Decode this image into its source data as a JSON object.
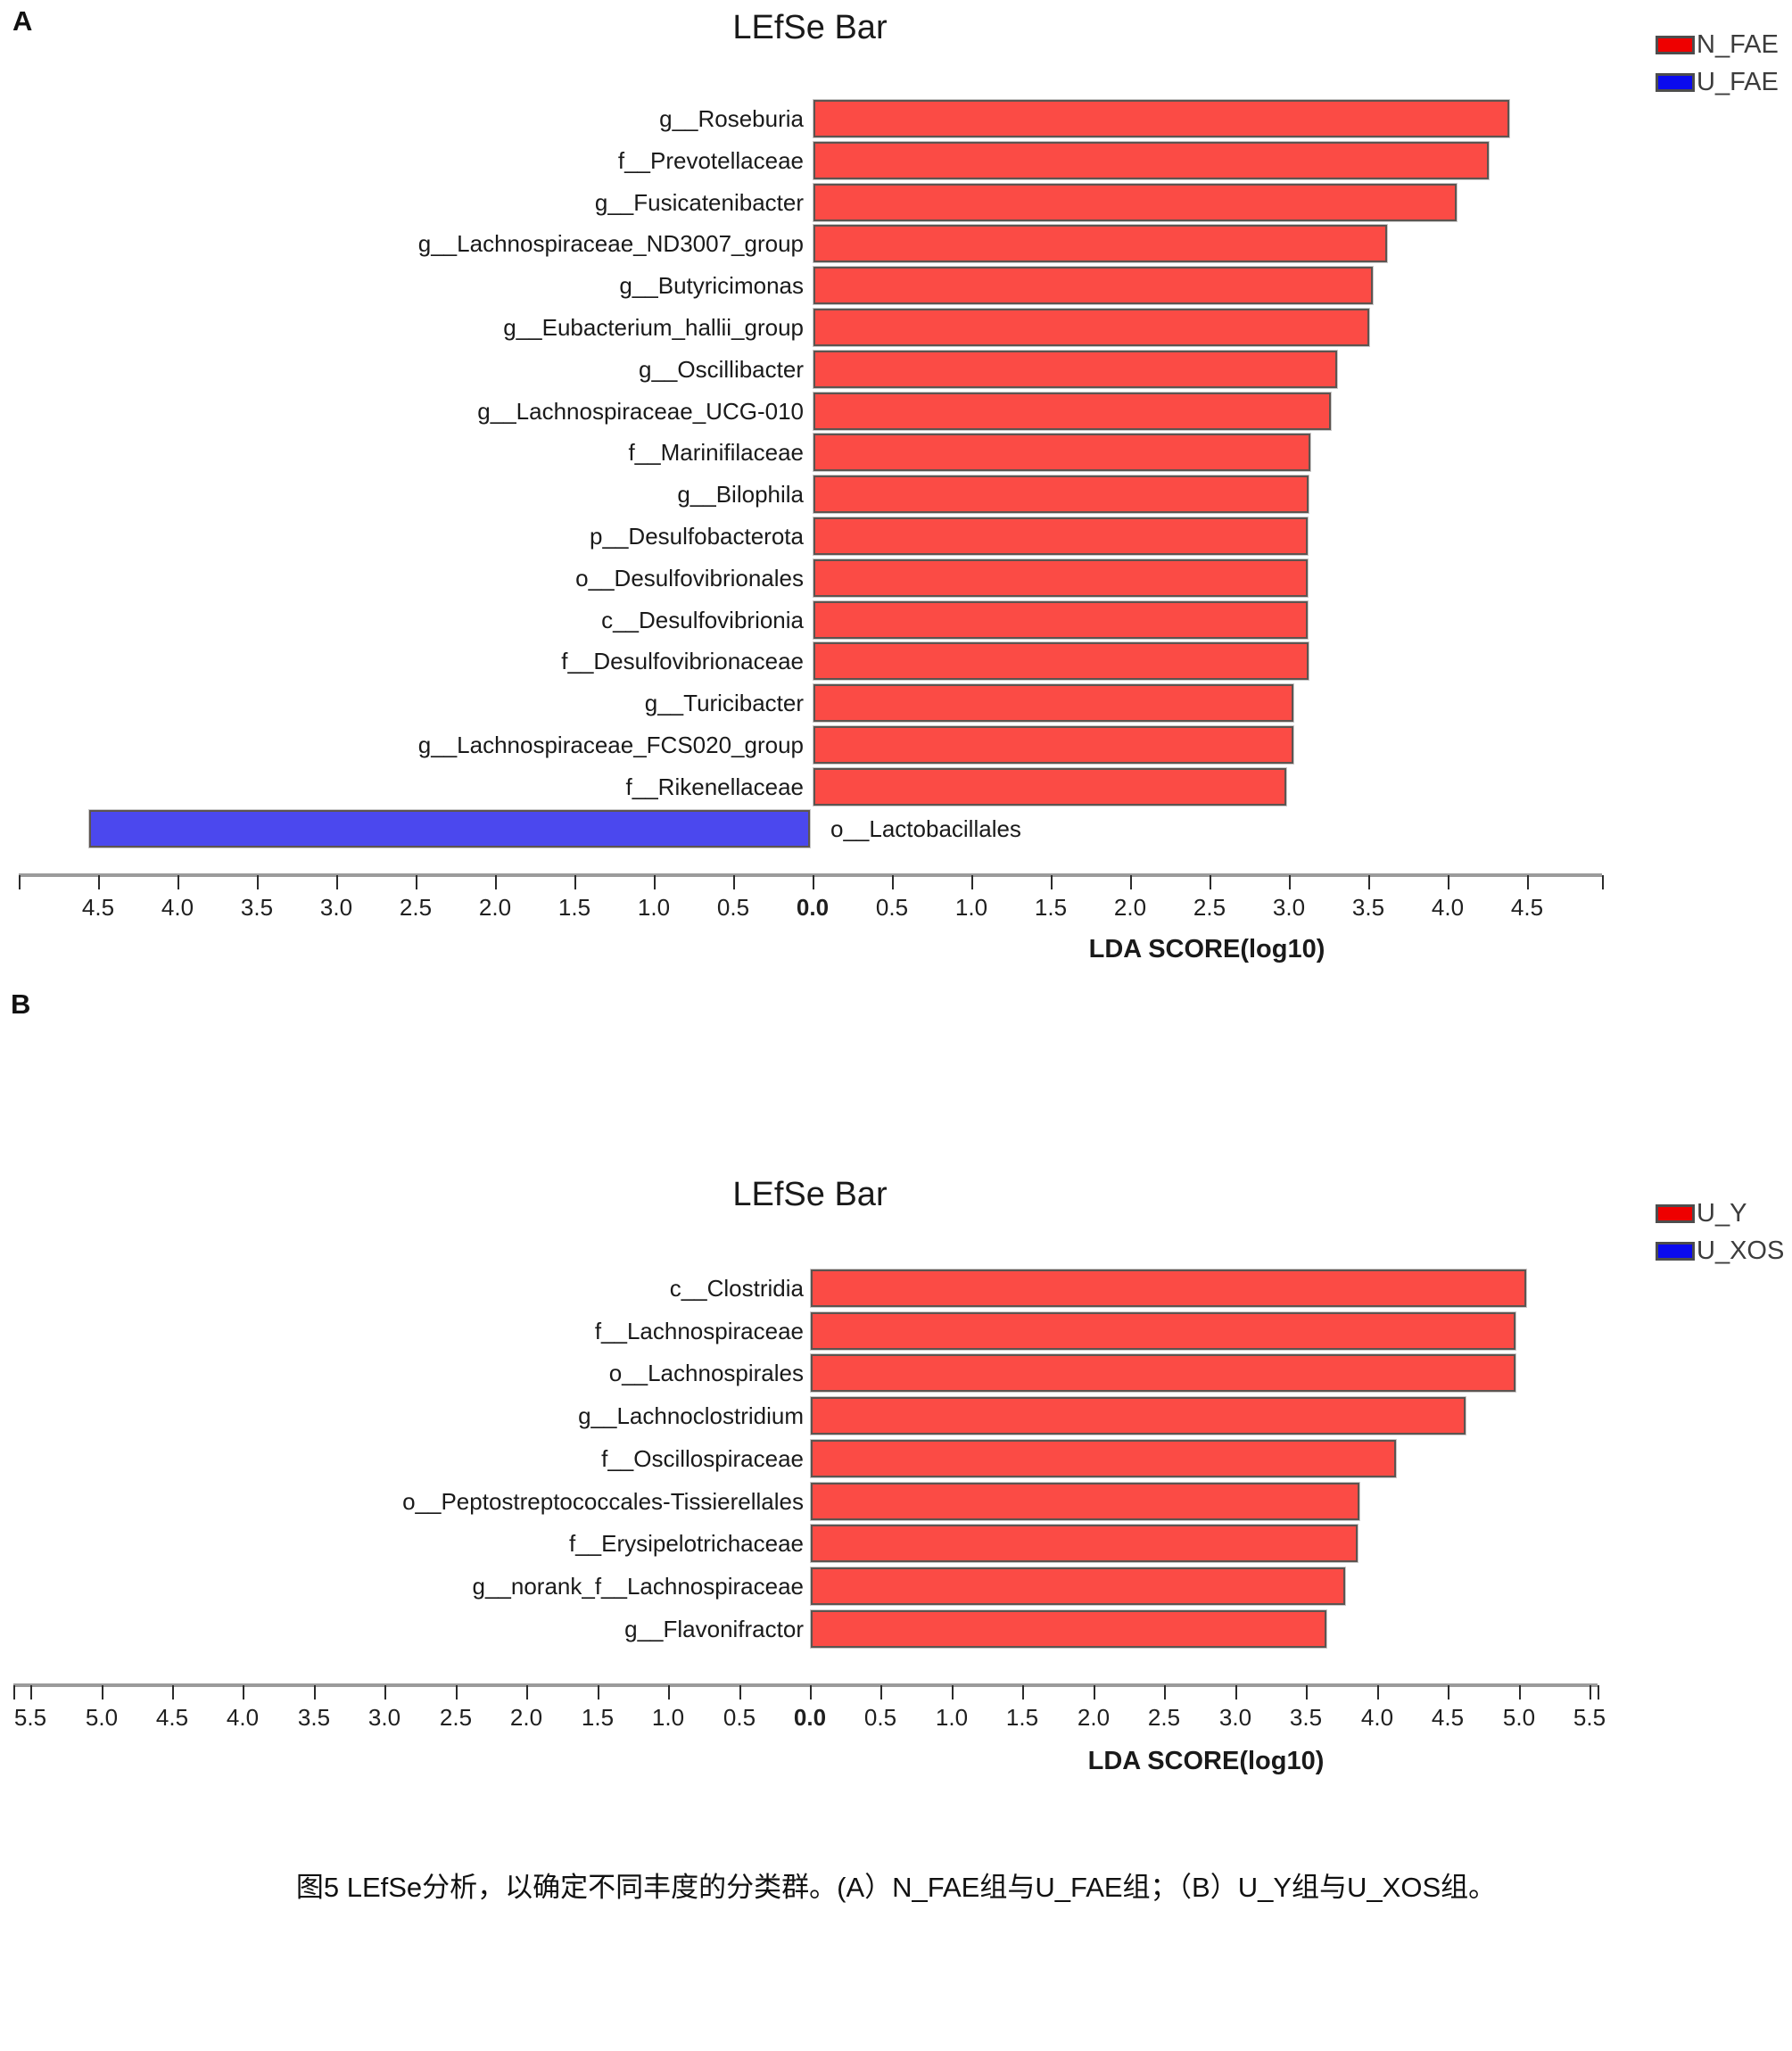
{
  "page": {
    "panel_a_letter": "A",
    "panel_b_letter": "B",
    "caption": "图5 LEfSe分析，以确定不同丰度的分类群。(A）N_FAE组与U_FAE组；（B）U_Y组与U_XOS组。"
  },
  "colors": {
    "bar_positive_fill": "#fb4b45",
    "bar_negative_fill": "#4b48ee",
    "legend_red": "#ee0000",
    "legend_blue": "#0b0bee",
    "bar_border": "#5d5450",
    "axis_line": "#9b9b9b",
    "tick": "#2b2b2b"
  },
  "chart_data": [
    {
      "type": "bar",
      "panel": "A",
      "title": "LEfSe Bar",
      "xlabel": "LDA SCORE(log10)",
      "orientation": "horizontal-diverging",
      "legend": [
        {
          "label": "N_FAE",
          "swatch_color": "#ee0000",
          "bar_color": "#fb4b45"
        },
        {
          "label": "U_FAE",
          "swatch_color": "#0b0bee",
          "bar_color": "#4b48ee"
        }
      ],
      "axis": {
        "range": [
          -5.0,
          4.97
        ],
        "tick_step": 0.5,
        "tick_values": [
          -4.5,
          -4.0,
          -3.5,
          -3.0,
          -2.5,
          -2.0,
          -1.5,
          -1.0,
          -0.5,
          0.0,
          0.5,
          1.0,
          1.5,
          2.0,
          2.5,
          3.0,
          3.5,
          4.0,
          4.5
        ],
        "tick_labels": [
          "4.5",
          "4.0",
          "3.5",
          "3.0",
          "2.5",
          "2.0",
          "1.5",
          "1.0",
          "0.5",
          "0.0",
          "0.5",
          "1.0",
          "1.5",
          "2.0",
          "2.5",
          "3.0",
          "3.5",
          "4.0",
          "4.5"
        ]
      },
      "bars": [
        {
          "label": "g__Roseburia",
          "value": 4.38,
          "group": "N_FAE"
        },
        {
          "label": "f__Prevotellaceae",
          "value": 4.25,
          "group": "N_FAE"
        },
        {
          "label": "g__Fusicatenibacter",
          "value": 4.05,
          "group": "N_FAE"
        },
        {
          "label": "g__Lachnospiraceae_ND3007_group",
          "value": 3.61,
          "group": "N_FAE"
        },
        {
          "label": "g__Butyricimonas",
          "value": 3.52,
          "group": "N_FAE"
        },
        {
          "label": "g__Eubacterium_hallii_group",
          "value": 3.5,
          "group": "N_FAE"
        },
        {
          "label": "g__Oscillibacter",
          "value": 3.3,
          "group": "N_FAE"
        },
        {
          "label": "g__Lachnospiraceae_UCG-010",
          "value": 3.26,
          "group": "N_FAE"
        },
        {
          "label": "f__Marinifilaceae",
          "value": 3.13,
          "group": "N_FAE"
        },
        {
          "label": "g__Bilophila",
          "value": 3.12,
          "group": "N_FAE"
        },
        {
          "label": "p__Desulfobacterota",
          "value": 3.11,
          "group": "N_FAE"
        },
        {
          "label": "o__Desulfovibrionales",
          "value": 3.11,
          "group": "N_FAE"
        },
        {
          "label": "c__Desulfovibrionia",
          "value": 3.11,
          "group": "N_FAE"
        },
        {
          "label": "f__Desulfovibrionaceae",
          "value": 3.12,
          "group": "N_FAE"
        },
        {
          "label": "g__Turicibacter",
          "value": 3.02,
          "group": "N_FAE"
        },
        {
          "label": "g__Lachnospiraceae_FCS020_group",
          "value": 3.02,
          "group": "N_FAE"
        },
        {
          "label": "f__Rikenellaceae",
          "value": 2.98,
          "group": "N_FAE"
        },
        {
          "label": "o__Lactobacillales",
          "value": -4.54,
          "group": "U_FAE"
        }
      ]
    },
    {
      "type": "bar",
      "panel": "B",
      "title": "LEfSe Bar",
      "xlabel": "LDA SCORE(log10)",
      "orientation": "horizontal-diverging",
      "legend": [
        {
          "label": "U_Y",
          "swatch_color": "#ee0000",
          "bar_color": "#fb4b45"
        },
        {
          "label": "U_XOS",
          "swatch_color": "#0b0bee",
          "bar_color": "#4b48ee"
        }
      ],
      "axis": {
        "range": [
          -5.62,
          5.56
        ],
        "tick_step": 0.5,
        "tick_values": [
          -5.5,
          -5.0,
          -4.5,
          -4.0,
          -3.5,
          -3.0,
          -2.5,
          -2.0,
          -1.5,
          -1.0,
          -0.5,
          0.0,
          0.5,
          1.0,
          1.5,
          2.0,
          2.5,
          3.0,
          3.5,
          4.0,
          4.5,
          5.0,
          5.5
        ],
        "tick_labels": [
          "5.5",
          "5.0",
          "4.5",
          "4.0",
          "3.5",
          "3.0",
          "2.5",
          "2.0",
          "1.5",
          "1.0",
          "0.5",
          "0.0",
          "0.5",
          "1.0",
          "1.5",
          "2.0",
          "2.5",
          "3.0",
          "3.5",
          "4.0",
          "4.5",
          "5.0",
          "5.5"
        ]
      },
      "bars": [
        {
          "label": "c__Clostridia",
          "value": 5.05,
          "group": "U_Y"
        },
        {
          "label": "f__Lachnospiraceae",
          "value": 4.97,
          "group": "U_Y"
        },
        {
          "label": "o__Lachnospirales",
          "value": 4.97,
          "group": "U_Y"
        },
        {
          "label": "g__Lachnoclostridium",
          "value": 4.62,
          "group": "U_Y"
        },
        {
          "label": "f__Oscillospiraceae",
          "value": 4.13,
          "group": "U_Y"
        },
        {
          "label": "o__Peptostreptococcales-Tissierellales",
          "value": 3.87,
          "group": "U_Y"
        },
        {
          "label": "f__Erysipelotrichaceae",
          "value": 3.86,
          "group": "U_Y"
        },
        {
          "label": "g__norank_f__Lachnospiraceae",
          "value": 3.77,
          "group": "U_Y"
        },
        {
          "label": "g__Flavonifractor",
          "value": 3.64,
          "group": "U_Y"
        }
      ]
    }
  ]
}
